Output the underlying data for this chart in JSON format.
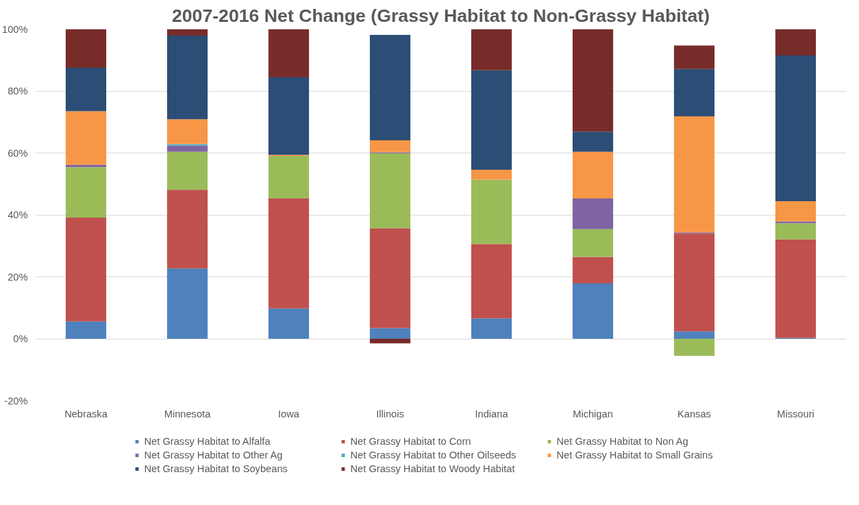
{
  "chart_data": {
    "type": "bar",
    "title": "2007-2016 Net Change (Grassy Habitat to Non-Grassy Habitat)",
    "stacked": true,
    "categories": [
      "Nebraska",
      "Minnesota",
      "Iowa",
      "Illinois",
      "Indiana",
      "Michigan",
      "Kansas",
      "Missouri"
    ],
    "series": [
      {
        "name": "Net Grassy Habitat to Alfalfa",
        "color": "#4f81bd",
        "values": [
          5.6,
          22.7,
          9.8,
          3.4,
          6.6,
          17.9,
          2.4,
          0.3
        ]
      },
      {
        "name": "Net Grassy Habitat to Corn",
        "color": "#c0504d",
        "values": [
          33.5,
          25.4,
          35.5,
          32.3,
          24.0,
          8.5,
          31.6,
          31.8
        ]
      },
      {
        "name": "Net Grassy Habitat to Non Ag",
        "color": "#9bbb59",
        "values": [
          16.3,
          12.3,
          13.7,
          24.2,
          20.8,
          9.0,
          -5.5,
          5.2
        ]
      },
      {
        "name": "Net Grassy Habitat to Other Ag",
        "color": "#8064a2",
        "values": [
          0.8,
          2.0,
          0,
          0.3,
          0,
          9.9,
          0.3,
          0.6
        ]
      },
      {
        "name": "Net Grassy Habitat to Other Oilseeds",
        "color": "#4bacc6",
        "values": [
          0,
          0.5,
          0,
          0,
          0,
          0,
          0,
          0
        ]
      },
      {
        "name": "Net Grassy Habitat to Small Grains",
        "color": "#f79646",
        "values": [
          17.3,
          8.0,
          0.4,
          3.9,
          3.2,
          15.1,
          37.5,
          6.5
        ]
      },
      {
        "name": "Net Grassy Habitat to Soybeans",
        "color": "#2c4d75",
        "values": [
          14.0,
          27.0,
          25.0,
          34.0,
          32.1,
          6.5,
          15.3,
          47.1
        ]
      },
      {
        "name": "Net Grassy Habitat to Woody Habitat",
        "color": "#772c2a",
        "values": [
          12.5,
          2.1,
          15.6,
          -1.5,
          13.3,
          33.1,
          7.6,
          8.5
        ]
      }
    ],
    "ylim": [
      -20,
      100
    ],
    "yticks": [
      {
        "value": -20,
        "label": "-20%"
      },
      {
        "value": 0,
        "label": "0%"
      },
      {
        "value": 20,
        "label": "20%"
      },
      {
        "value": 40,
        "label": "40%"
      },
      {
        "value": 60,
        "label": "60%"
      },
      {
        "value": 80,
        "label": "80%"
      },
      {
        "value": 100,
        "label": "100%"
      }
    ],
    "grid": "y",
    "legend": "bottom"
  }
}
